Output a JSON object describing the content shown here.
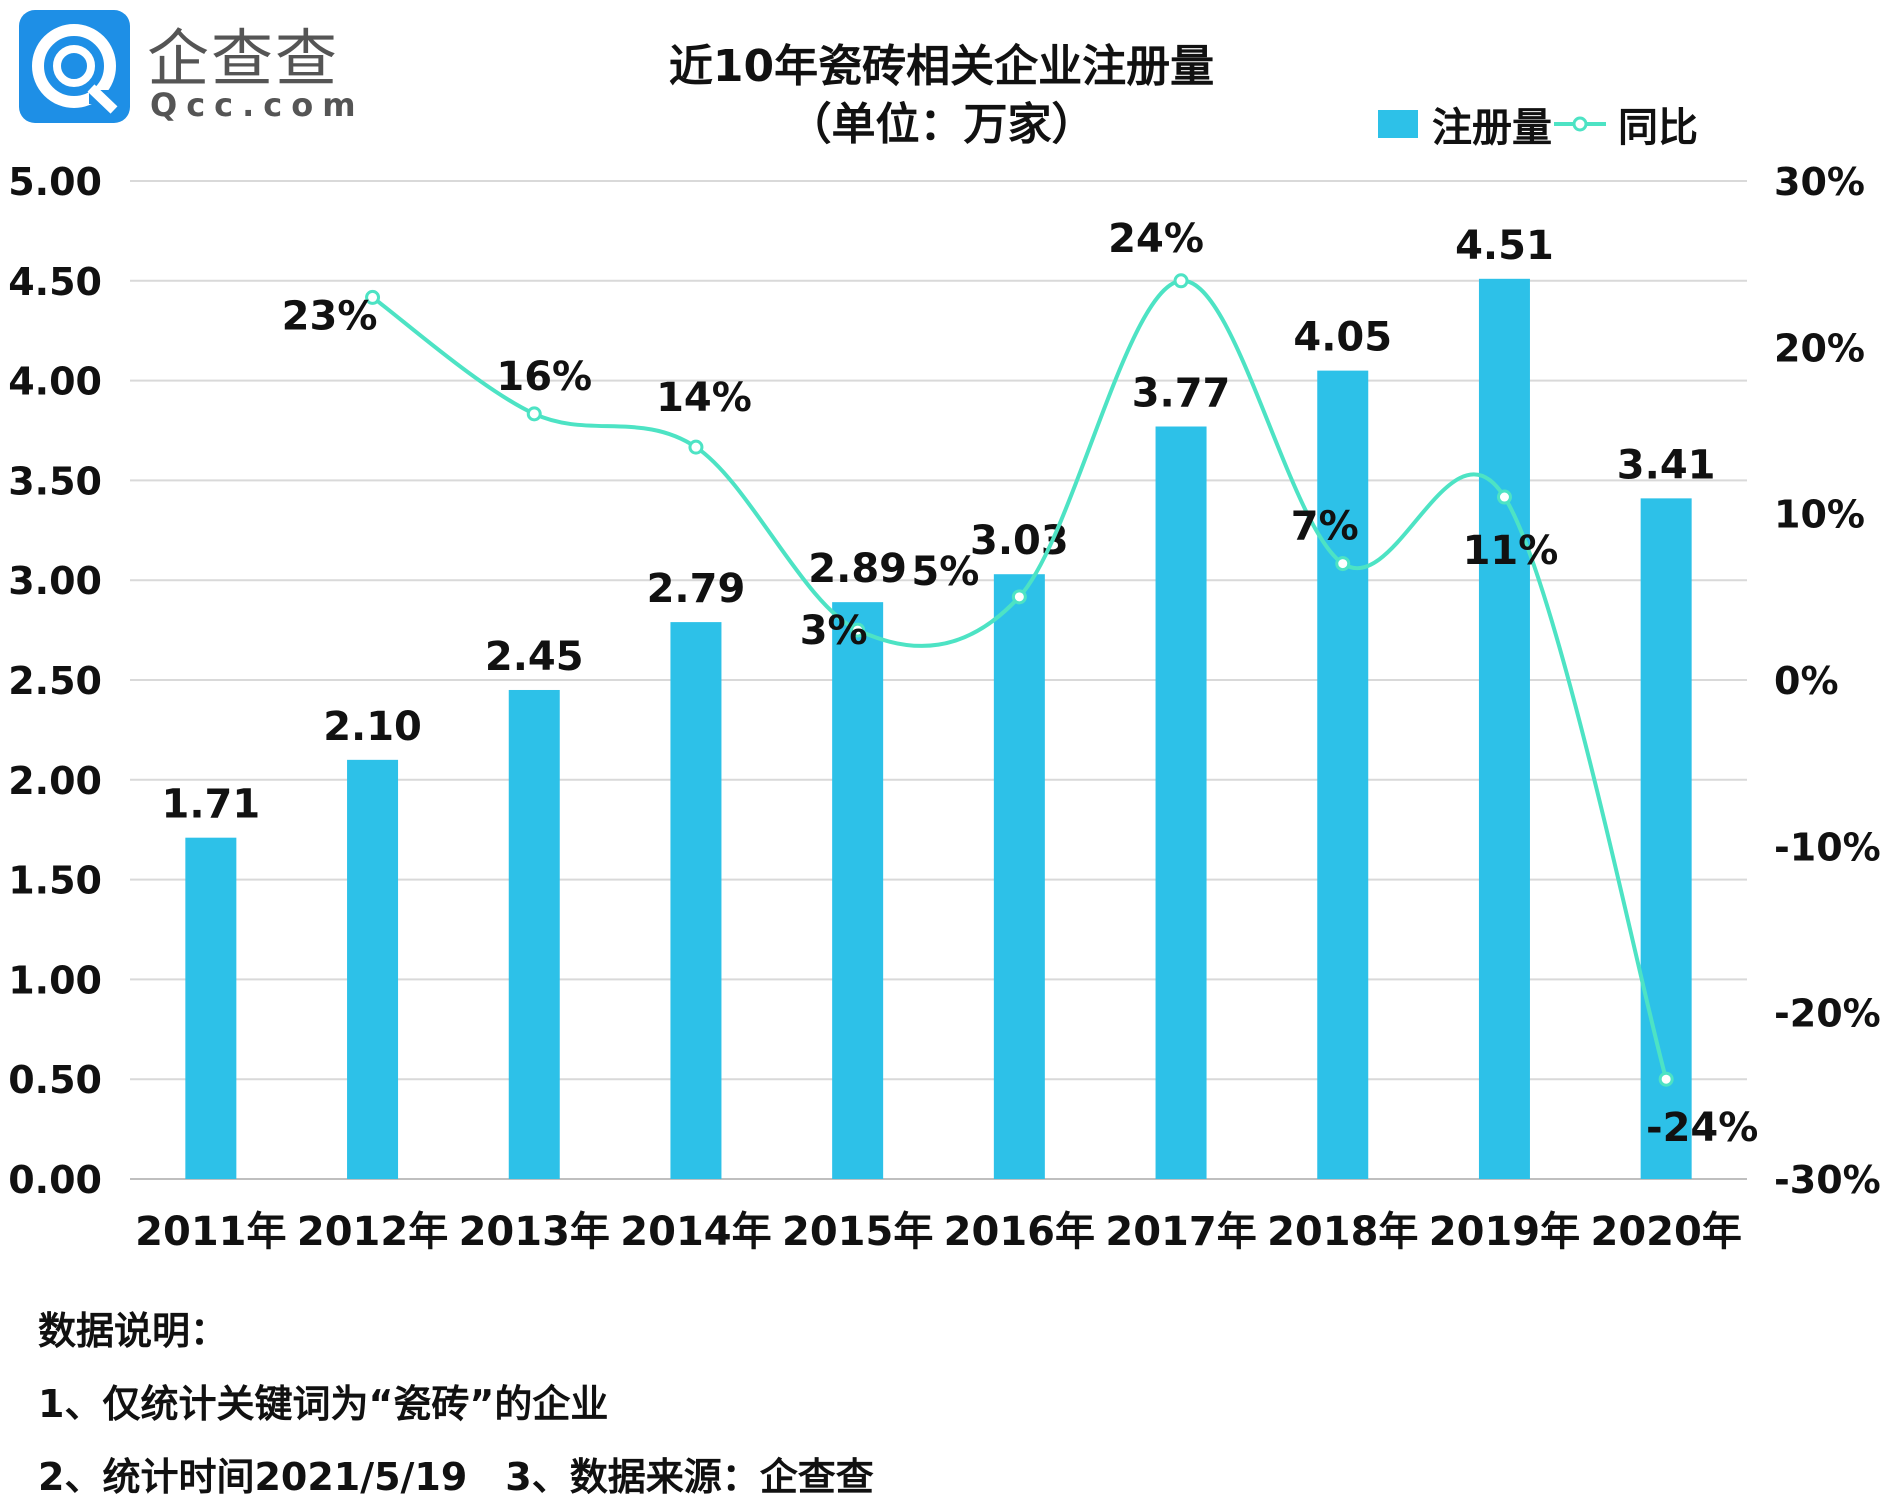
{
  "logo": {
    "cn": "企查查",
    "en": "Qcc.com"
  },
  "chart_data": {
    "type": "bar+line",
    "title": "近10年瓷砖相关企业注册量",
    "subtitle": "（单位：万家）",
    "categories": [
      "2011年",
      "2012年",
      "2013年",
      "2014年",
      "2015年",
      "2016年",
      "2017年",
      "2018年",
      "2019年",
      "2020年"
    ],
    "series": [
      {
        "name": "注册量",
        "type": "bar",
        "axis": "left",
        "color": "#2DC1E8",
        "values": [
          1.71,
          2.1,
          2.45,
          2.79,
          2.89,
          3.03,
          3.77,
          4.05,
          4.51,
          3.41
        ],
        "labels": [
          "1.71",
          "2.10",
          "2.45",
          "2.79",
          "2.89",
          "3.03",
          "3.77",
          "4.05",
          "4.51",
          "3.41"
        ]
      },
      {
        "name": "同比",
        "type": "line",
        "axis": "right",
        "color": "#4DE3C4",
        "values": [
          null,
          23,
          16,
          14,
          3,
          5,
          24,
          7,
          11,
          -24
        ],
        "labels": [
          "",
          "23%",
          "16%",
          "14%",
          "3%",
          "5%",
          "24%",
          "7%",
          "11%",
          "-24%"
        ]
      }
    ],
    "left_axis": {
      "range": [
        0,
        5
      ],
      "ticks": [
        "0.00",
        "0.50",
        "1.00",
        "1.50",
        "2.00",
        "2.50",
        "3.00",
        "3.50",
        "4.00",
        "4.50",
        "5.00"
      ]
    },
    "right_axis": {
      "range": [
        -30,
        30
      ],
      "ticks": [
        "-30%",
        "-20%",
        "-10%",
        "0%",
        "10%",
        "20%",
        "30%"
      ]
    },
    "grid": true,
    "legend": "top-right"
  },
  "notes": {
    "heading": "数据说明：",
    "line1": "1、仅统计关键词为“瓷砖”的企业",
    "line2": "2、统计时间2021/5/19　3、数据来源：企查查"
  }
}
